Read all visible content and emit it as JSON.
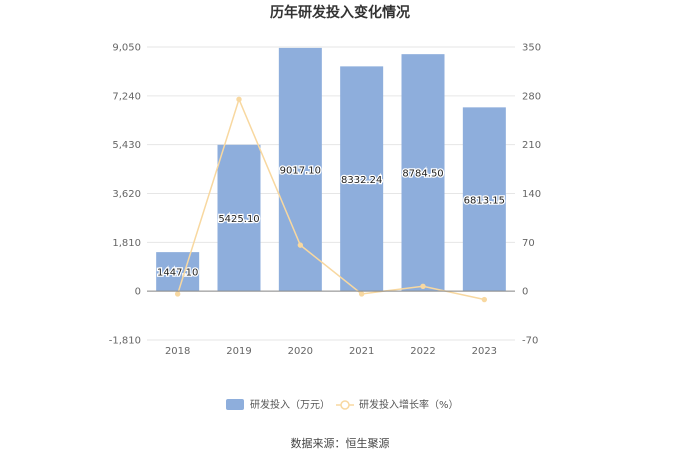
{
  "chart_data": {
    "type": "bar",
    "title": "历年研发投入变化情况",
    "categories": [
      "2018",
      "2019",
      "2020",
      "2021",
      "2022",
      "2023"
    ],
    "series": [
      {
        "name": "研发投入（万元）",
        "type": "bar",
        "axis": "left",
        "values": [
          1447.1,
          5425.1,
          9017.1,
          8332.24,
          8784.5,
          6813.15
        ],
        "labels": [
          "1447.10",
          "5425.10",
          "9017.10",
          "8332.24",
          "8784.50",
          "6813.15"
        ],
        "color": "#8eaedc"
      },
      {
        "name": "研发投入增长率（%）",
        "type": "line",
        "axis": "right",
        "values": [
          -4,
          275,
          66,
          -4,
          7,
          -12
        ],
        "color": "#f8d8a0"
      }
    ],
    "y_left": {
      "ylim": [
        -1810,
        9050
      ],
      "ticks": [
        -1810,
        0,
        1810,
        3620,
        5430,
        7240,
        9050
      ],
      "tick_labels": [
        "-1,810",
        "0",
        "1,810",
        "3,620",
        "5,430",
        "7,240",
        "9,050"
      ]
    },
    "y_right": {
      "ylim": [
        -70,
        350
      ],
      "ticks": [
        -70,
        0,
        70,
        140,
        210,
        280,
        350
      ],
      "tick_labels": [
        "-70",
        "0",
        "70",
        "140",
        "210",
        "280",
        "350"
      ]
    },
    "grid": true,
    "legend": "bottom-center",
    "source": "数据来源：恒生聚源"
  }
}
